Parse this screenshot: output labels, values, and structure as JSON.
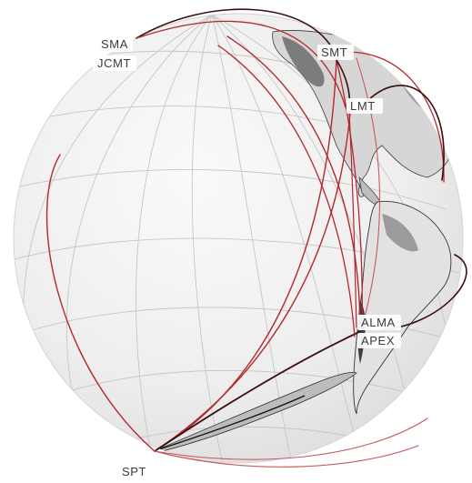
{
  "stations": [
    {
      "id": "sma",
      "label": "SMA"
    },
    {
      "id": "jcmt",
      "label": "JCMT"
    },
    {
      "id": "smt",
      "label": "SMT"
    },
    {
      "id": "lmt",
      "label": "LMT"
    },
    {
      "id": "alma",
      "label": "ALMA"
    },
    {
      "id": "apex",
      "label": "APEX"
    },
    {
      "id": "spt",
      "label": "SPT"
    }
  ],
  "colors": {
    "baseline_front": "#b3282d",
    "baseline_dark": "#3a0d10",
    "baseline_back": "#c65a5d",
    "globe_fill": "#efefef",
    "graticule": "#c8c8c8",
    "land": "#1a1a1a"
  }
}
